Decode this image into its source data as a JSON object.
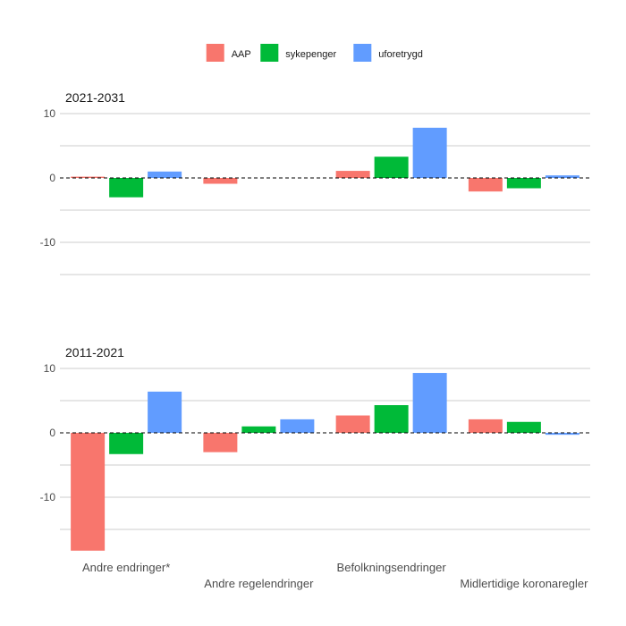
{
  "chart_data": {
    "type": "bar",
    "legend": {
      "position": "top",
      "entries": [
        {
          "name": "AAP",
          "color": "#F8766D"
        },
        {
          "name": "sykepenger",
          "color": "#00BA38"
        },
        {
          "name": "uforetrygd",
          "color": "#619CFF"
        }
      ]
    },
    "categories": [
      "Andre endringer*",
      "Andre regelendringer",
      "Befolkningsendringer",
      "Midlertidige koronaregler"
    ],
    "ylim": [
      -16,
      11
    ],
    "yticks": [
      10,
      0,
      -10
    ],
    "ytick_labels": [
      "10",
      "0",
      "-10"
    ],
    "grid": true,
    "panels": [
      {
        "title": "2021-2031",
        "series": [
          {
            "name": "AAP",
            "values": [
              0.2,
              -0.9,
              1.1,
              -2.1
            ]
          },
          {
            "name": "sykepenger",
            "values": [
              -3.0,
              0.0,
              3.3,
              -1.6
            ]
          },
          {
            "name": "uforetrygd",
            "values": [
              1.0,
              0.0,
              7.8,
              0.4
            ]
          }
        ]
      },
      {
        "title": "2011-2021",
        "series": [
          {
            "name": "AAP",
            "values": [
              -18.3,
              -3.0,
              2.7,
              2.1
            ]
          },
          {
            "name": "sykepenger",
            "values": [
              -3.3,
              1.0,
              4.3,
              1.7
            ]
          },
          {
            "name": "uforetrygd",
            "values": [
              6.4,
              2.1,
              9.3,
              -0.3
            ]
          }
        ]
      }
    ]
  }
}
